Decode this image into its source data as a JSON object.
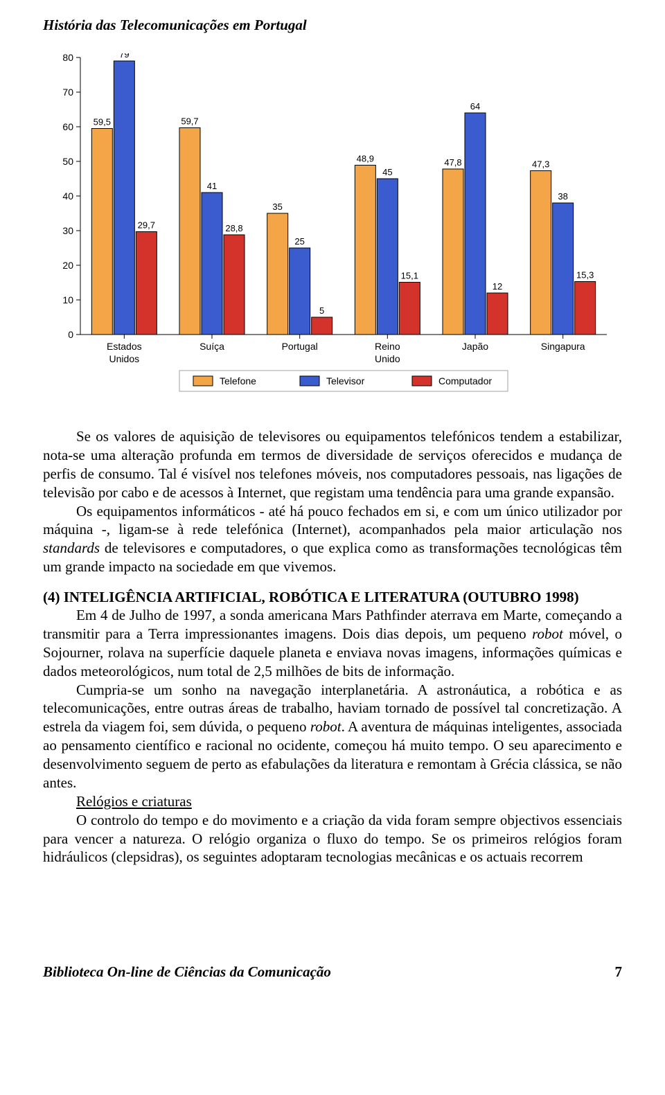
{
  "page_title": "História das Telecomunicações em Portugal",
  "chart": {
    "type": "grouped-bar",
    "ymin": 0,
    "ymax": 80,
    "ytick_step": 10,
    "yticks": [
      0,
      10,
      20,
      30,
      40,
      50,
      60,
      70,
      80
    ],
    "categories": [
      "Estados Unidos",
      "Suíça",
      "Portugal",
      "Reino Unido",
      "Japão",
      "Singapura"
    ],
    "series": [
      {
        "name": "Telefone",
        "color": "#f4a548",
        "values": [
          59.5,
          59.7,
          35,
          48.9,
          47.8,
          47.3
        ]
      },
      {
        "name": "Televisor",
        "color": "#3a5cce",
        "values": [
          79,
          41,
          25,
          45,
          64,
          38
        ]
      },
      {
        "name": "Computador",
        "color": "#d4332b",
        "values": [
          29.7,
          28.8,
          5,
          15.1,
          12,
          15.3
        ]
      }
    ],
    "value_labels": {
      "0": [
        "59,5",
        "79",
        "29,7"
      ],
      "1": [
        "59,7",
        "41",
        "28,8"
      ],
      "2": [
        "35",
        "25",
        "5"
      ],
      "3": [
        "48,9",
        "45",
        "15,1"
      ],
      "4": [
        "47,8",
        "64",
        "12"
      ],
      "5": [
        "47,3",
        "38",
        "15,3"
      ]
    },
    "fontsize_tick": 14,
    "fontsize_category": 14,
    "fontsize_value": 13,
    "fontsize_legend": 14,
    "bar_stroke": "#000000",
    "plot_bg": "#ffffff"
  },
  "paragraphs": {
    "p1a": "Se os valores de aquisição de televisores ou equipamentos telefónicos tendem a estabilizar, nota-se uma alteração profunda em termos de diversidade de serviços oferecidos e mudança de perfis de consumo. Tal é visível nos telefones móveis, nos computadores pessoais, nas ligações de televisão por cabo e de acessos à Internet, que registam uma tendência para uma grande expansão.",
    "p1b": "Os equipamentos informáticos - até há pouco fechados em si, e com um único utilizador por máquina -, ligam-se à rede telefónica (Internet), acompanhados pela maior articulação nos ",
    "p1b_italic": "standards",
    "p1c": " de televisores e computadores, o que explica como as transformações tecnológicas têm um grande impacto na sociedade em que vivemos."
  },
  "section4": {
    "heading": "(4) INTELIGÊNCIA ARTIFICIAL, ROBÓTICA E LITERATURA (OUTUBRO 1998)",
    "p1a": "Em 4 de Julho de 1997, a sonda americana Mars Pathfinder aterrava em Marte, começando a transmitir para a Terra impressionantes imagens. Dois dias depois, um pequeno ",
    "p1_italic1": "robot",
    "p1b": " móvel, o Sojourner, rolava na superfície daquele planeta e enviava novas imagens, informações químicas e dados meteorológicos, num total de 2,5 milhões de bits de informação.",
    "p2a": "Cumpria-se um sonho na navegação interplanetária. A astronáutica, a robótica e as telecomunicações, entre outras áreas de trabalho, haviam tornado de possível tal concretização. A estrela da viagem foi, sem dúvida, o pequeno ",
    "p2_italic1": "robot",
    "p2b": ". A aventura de máquinas inteligentes, associada ao pensamento científico e racional no ocidente, começou há muito tempo. O seu aparecimento e desenvolvimento seguem de perto as efabulações da literatura e remontam à Grécia clássica, se não antes.",
    "p3_heading": "Relógios e criaturas",
    "p3": "O controlo do tempo e do movimento e a criação da vida foram sempre objectivos essenciais para vencer a natureza. O relógio organiza o fluxo do tempo. Se os primeiros relógios foram hidráulicos (clepsidras), os seguintes adoptaram tecnologias mecânicas e os actuais recorrem"
  },
  "footer": {
    "left": "Biblioteca On-line de Ciências da Comunicação",
    "page": "7"
  }
}
